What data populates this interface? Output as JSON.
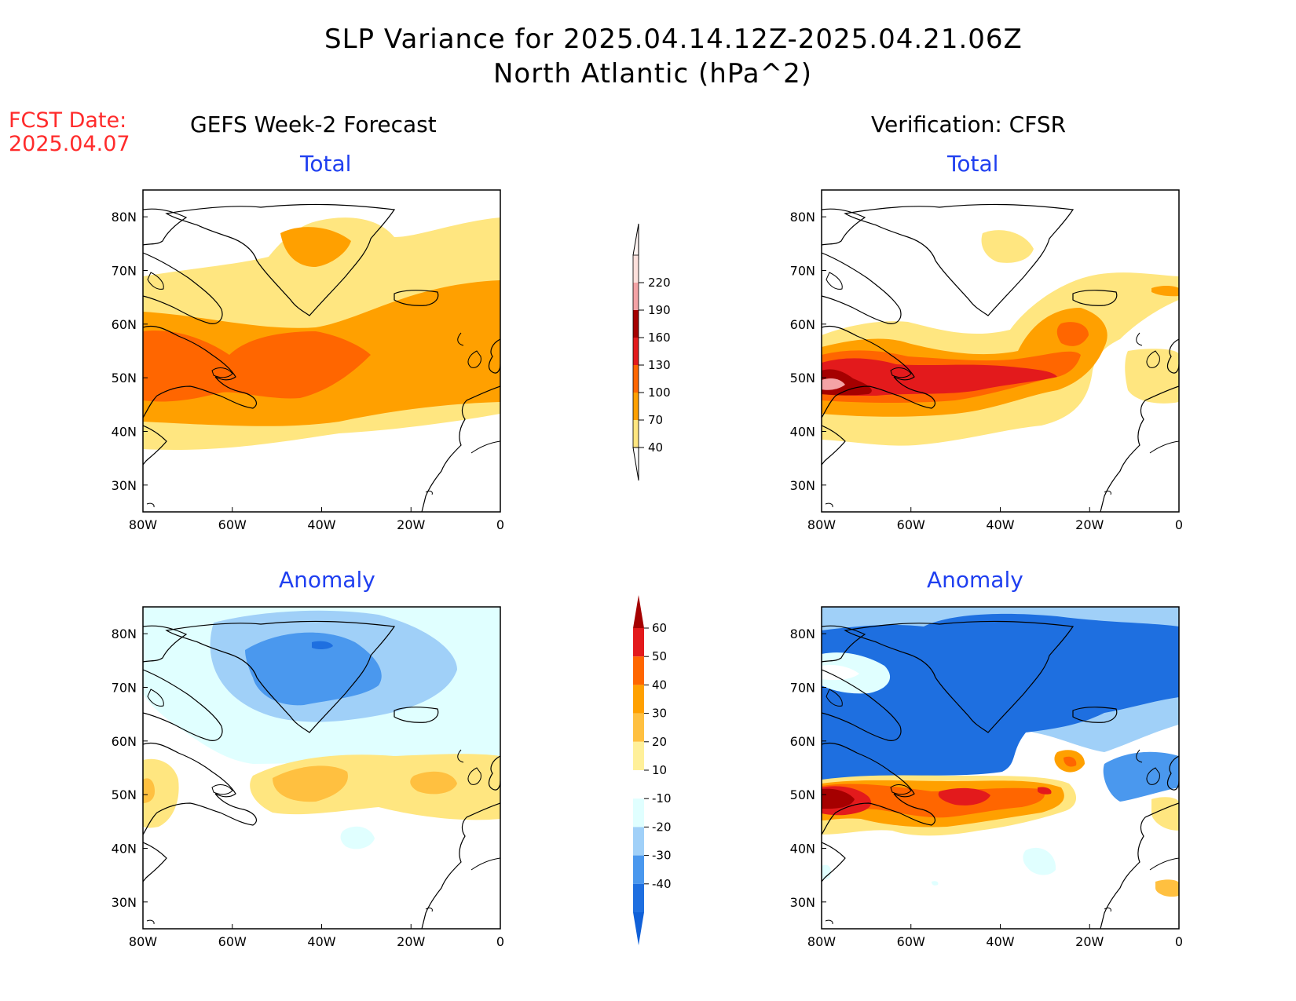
{
  "header": {
    "title_line1": "SLP Variance for 2025.04.14.12Z-2025.04.21.06Z",
    "title_line2": "North Atlantic (hPa^2)"
  },
  "fcst_date": {
    "label": "FCST Date:",
    "value": "2025.04.07"
  },
  "columns": {
    "left": "GEFS Week-2 Forecast",
    "right": "Verification: CFSR"
  },
  "panels": [
    {
      "id": "gefs-total",
      "title": "Total"
    },
    {
      "id": "cfsr-total",
      "title": "Total"
    },
    {
      "id": "gefs-anomaly",
      "title": "Anomaly"
    },
    {
      "id": "cfsr-anomaly",
      "title": "Anomaly"
    }
  ],
  "axes": {
    "lon_labels": [
      "80W",
      "60W",
      "40W",
      "20W",
      "0"
    ],
    "lat_labels": [
      "80N",
      "70N",
      "60N",
      "50N",
      "40N",
      "30N"
    ],
    "lon_range": [
      -80,
      0
    ],
    "lat_range": [
      25,
      85
    ]
  },
  "colorbars": {
    "total": {
      "levels": [
        "220",
        "190",
        "160",
        "130",
        "100",
        "70",
        "40"
      ],
      "colors": [
        "#fde0dc",
        "#f4a3a6",
        "#a50000",
        "#e31a1c",
        "#ff6600",
        "#ffa000",
        "#ffe680"
      ]
    },
    "anomaly": {
      "levels": [
        "60",
        "50",
        "40",
        "30",
        "20",
        "10",
        "-10",
        "-20",
        "-30",
        "-40"
      ],
      "colors": [
        "#a50000",
        "#e31a1c",
        "#ff6600",
        "#ffa000",
        "#ffc040",
        "#fff09a",
        "#ffffff",
        "#e0ffff",
        "#a0d0f8",
        "#4a98ee",
        "#1e6fe0",
        "#1060d8"
      ]
    }
  }
}
